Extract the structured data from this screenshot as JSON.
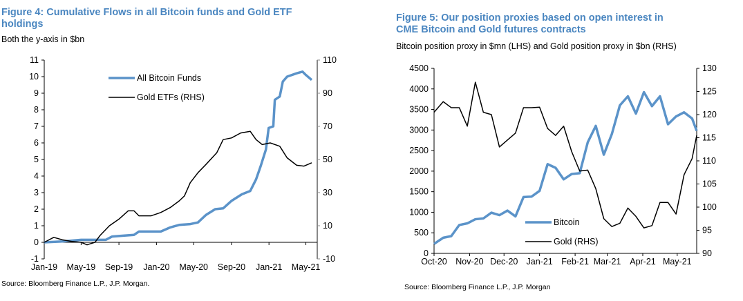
{
  "chart_data": [
    {
      "type": "line",
      "title": "Figure 4: Cumulative Flows in all Bitcoin funds and Gold ETF holdings",
      "subtitle": "Both the y-axis in $bn",
      "source": "Source: Bloomberg Finance L.P., J.P. Morgan.",
      "ylim": [
        -1,
        11
      ],
      "yticks": [
        "-1",
        "0",
        "1",
        "2",
        "3",
        "4",
        "5",
        "6",
        "7",
        "8",
        "9",
        "10",
        "11"
      ],
      "y2lim": [
        -10,
        110
      ],
      "y2ticks": [
        "-10",
        "10",
        "30",
        "50",
        "70",
        "90",
        "110"
      ],
      "xlim": [
        "2019-01-01",
        "2021-05-20"
      ],
      "xticks": [
        [
          "2019-01-01",
          "Jan-19"
        ],
        [
          "2019-05-01",
          "May-19"
        ],
        [
          "2019-09-01",
          "Sep-19"
        ],
        [
          "2020-01-01",
          "Jan-20"
        ],
        [
          "2020-05-01",
          "May-20"
        ],
        [
          "2020-09-01",
          "Sep-20"
        ],
        [
          "2021-01-01",
          "Jan-21"
        ],
        [
          "2021-05-01",
          "May-21"
        ]
      ],
      "legend": "top-center",
      "colors": {
        "bitcoin": "#5b93c9",
        "gold": "#000000"
      },
      "series": [
        {
          "name": "All Bitcoin Funds",
          "axis": "left",
          "points": [
            [
              "2019-01-01",
              0
            ],
            [
              "2019-03-01",
              0.05
            ],
            [
              "2019-05-01",
              0.15
            ],
            [
              "2019-07-20",
              0.15
            ],
            [
              "2019-08-10",
              0.35
            ],
            [
              "2019-09-15",
              0.4
            ],
            [
              "2019-10-20",
              0.45
            ],
            [
              "2019-11-05",
              0.65
            ],
            [
              "2020-01-15",
              0.65
            ],
            [
              "2020-02-15",
              0.9
            ],
            [
              "2020-03-15",
              1.05
            ],
            [
              "2020-04-20",
              1.1
            ],
            [
              "2020-05-15",
              1.2
            ],
            [
              "2020-06-10",
              1.65
            ],
            [
              "2020-07-10",
              2.0
            ],
            [
              "2020-08-05",
              2.05
            ],
            [
              "2020-09-01",
              2.5
            ],
            [
              "2020-10-05",
              2.9
            ],
            [
              "2020-11-01",
              3.1
            ],
            [
              "2020-11-20",
              3.8
            ],
            [
              "2020-12-05",
              4.6
            ],
            [
              "2020-12-22",
              5.6
            ],
            [
              "2020-12-31",
              6.9
            ],
            [
              "2021-01-15",
              7.0
            ],
            [
              "2021-01-20",
              8.6
            ],
            [
              "2021-02-05",
              8.8
            ],
            [
              "2021-02-15",
              9.7
            ],
            [
              "2021-03-01",
              10.0
            ],
            [
              "2021-04-01",
              10.2
            ],
            [
              "2021-04-20",
              10.3
            ],
            [
              "2021-05-01",
              10.1
            ],
            [
              "2021-05-20",
              9.8
            ]
          ]
        },
        {
          "name": "Gold ETFs (RHS)",
          "axis": "right",
          "points": [
            [
              "2019-01-01",
              0
            ],
            [
              "2019-02-01",
              3
            ],
            [
              "2019-03-01",
              1.5
            ],
            [
              "2019-04-01",
              0.5
            ],
            [
              "2019-05-01",
              0
            ],
            [
              "2019-05-20",
              -1.5
            ],
            [
              "2019-06-15",
              0
            ],
            [
              "2019-07-01",
              4
            ],
            [
              "2019-08-01",
              10
            ],
            [
              "2019-09-01",
              14
            ],
            [
              "2019-10-01",
              19
            ],
            [
              "2019-10-20",
              19
            ],
            [
              "2019-11-05",
              16
            ],
            [
              "2019-12-15",
              16
            ],
            [
              "2020-01-15",
              18
            ],
            [
              "2020-02-15",
              21
            ],
            [
              "2020-03-15",
              25
            ],
            [
              "2020-04-01",
              28
            ],
            [
              "2020-04-20",
              36
            ],
            [
              "2020-05-15",
              42
            ],
            [
              "2020-06-10",
              47
            ],
            [
              "2020-07-15",
              54
            ],
            [
              "2020-08-05",
              62
            ],
            [
              "2020-09-01",
              63
            ],
            [
              "2020-10-01",
              66
            ],
            [
              "2020-11-01",
              67
            ],
            [
              "2020-11-20",
              62
            ],
            [
              "2020-12-10",
              59
            ],
            [
              "2021-01-05",
              60
            ],
            [
              "2021-02-05",
              58
            ],
            [
              "2021-03-01",
              51
            ],
            [
              "2021-04-01",
              46.5
            ],
            [
              "2021-04-25",
              46
            ],
            [
              "2021-05-20",
              48
            ]
          ]
        }
      ]
    },
    {
      "type": "line",
      "title": "Figure 5: Our position proxies based on open interest in CME Bitcoin and Gold futures contracts",
      "subtitle": "Bitcoin position proxy in $mn (LHS) and Gold position proxy in $bn (RHS)",
      "source": "Source: Bloomberg Finance L.P., J.P. Morgan",
      "ylim": [
        0,
        4500
      ],
      "yticks": [
        "0",
        "500",
        "1000",
        "1500",
        "2000",
        "2500",
        "3000",
        "3500",
        "4000",
        "4500"
      ],
      "y2lim": [
        90,
        130
      ],
      "y2ticks": [
        "90",
        "95",
        "100",
        "105",
        "110",
        "115",
        "120",
        "125",
        "130"
      ],
      "xlim": [
        "2020-10-01",
        "2021-05-18"
      ],
      "xticks": [
        [
          "2020-10-01",
          "Oct-20"
        ],
        [
          "2020-11-01",
          "Nov-20"
        ],
        [
          "2020-12-01",
          "Dec-20"
        ],
        [
          "2021-01-01",
          "Jan-21"
        ],
        [
          "2021-02-01",
          "Feb-21"
        ],
        [
          "2021-03-01",
          "Mar-21"
        ],
        [
          "2021-04-01",
          "Apr-21"
        ],
        [
          "2021-05-01",
          "May-21"
        ]
      ],
      "legend": "bottom-center",
      "colors": {
        "bitcoin": "#5b93c9",
        "gold": "#000000"
      },
      "dates": [
        "2020-10-01",
        "2020-10-09",
        "2020-10-16",
        "2020-10-23",
        "2020-10-30",
        "2020-11-06",
        "2020-11-13",
        "2020-11-20",
        "2020-11-27",
        "2020-12-04",
        "2020-12-11",
        "2020-12-18",
        "2020-12-25",
        "2021-01-01",
        "2021-01-08",
        "2021-01-15",
        "2021-01-22",
        "2021-01-29",
        "2021-02-05",
        "2021-02-12",
        "2021-02-19",
        "2021-02-26",
        "2021-03-05",
        "2021-03-12",
        "2021-03-19",
        "2021-03-26",
        "2021-04-02",
        "2021-04-09",
        "2021-04-16",
        "2021-04-23",
        "2021-04-30",
        "2021-05-07",
        "2021-05-14",
        "2021-05-18"
      ],
      "series": [
        {
          "name": "Bitcoin",
          "axis": "left",
          "values": [
            230,
            380,
            420,
            690,
            730,
            830,
            850,
            990,
            930,
            1040,
            900,
            1370,
            1380,
            1520,
            2170,
            2080,
            1800,
            1930,
            1950,
            2700,
            3100,
            2400,
            2900,
            3600,
            3820,
            3400,
            3920,
            3580,
            3820,
            3140,
            3330,
            3430,
            3280,
            2980
          ]
        },
        {
          "name": "Gold (RHS)",
          "axis": "right",
          "values": [
            120.5,
            122.8,
            121.5,
            121.5,
            117.5,
            127,
            120.5,
            120,
            113,
            114.5,
            116,
            121.5,
            121.5,
            121.6,
            117,
            115.5,
            117.5,
            112,
            107.8,
            108,
            104,
            97.5,
            95.8,
            96.5,
            99.8,
            98,
            95.5,
            96,
            101,
            101,
            98.5,
            107,
            110.5,
            115.5
          ]
        }
      ]
    }
  ]
}
